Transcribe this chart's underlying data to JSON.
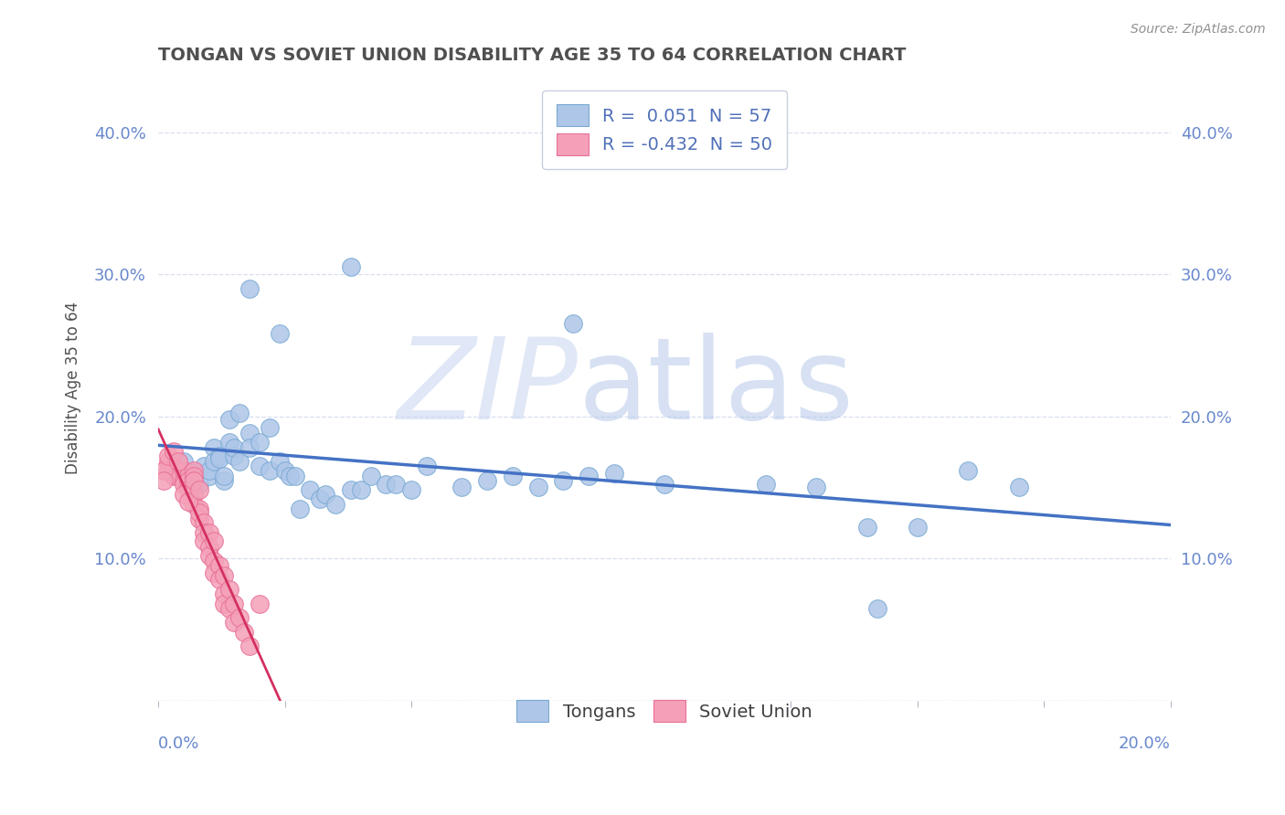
{
  "title": "TONGAN VS SOVIET UNION DISABILITY AGE 35 TO 64 CORRELATION CHART",
  "source_text": "Source: ZipAtlas.com",
  "ylabel": "Disability Age 35 to 64",
  "ytick_values": [
    0.0,
    0.1,
    0.2,
    0.3,
    0.4
  ],
  "ytick_labels": [
    "",
    "10.0%",
    "20.0%",
    "30.0%",
    "40.0%"
  ],
  "xlim": [
    0.0,
    0.2
  ],
  "ylim": [
    0.0,
    0.44
  ],
  "watermark_zip": "ZIP",
  "watermark_atlas": "atlas",
  "tongan_color": "#aec6e8",
  "soviet_color": "#f4a0b8",
  "tongan_edge_color": "#7aaad4",
  "soviet_edge_color": "#e87098",
  "tongan_line_color": "#4472c4",
  "soviet_line_color": "#d43060",
  "title_color": "#505050",
  "axis_label_color": "#6888cc",
  "grid_color": "#d8dff0",
  "legend_text_color": "#5070b8",
  "tongan_scatter": [
    [
      0.005,
      0.168
    ],
    [
      0.007,
      0.16
    ],
    [
      0.008,
      0.152
    ],
    [
      0.009,
      0.165
    ],
    [
      0.01,
      0.158
    ],
    [
      0.01,
      0.162
    ],
    [
      0.011,
      0.178
    ],
    [
      0.011,
      0.168
    ],
    [
      0.012,
      0.172
    ],
    [
      0.012,
      0.17
    ],
    [
      0.013,
      0.155
    ],
    [
      0.013,
      0.158
    ],
    [
      0.014,
      0.198
    ],
    [
      0.014,
      0.182
    ],
    [
      0.015,
      0.172
    ],
    [
      0.015,
      0.178
    ],
    [
      0.016,
      0.168
    ],
    [
      0.016,
      0.202
    ],
    [
      0.018,
      0.188
    ],
    [
      0.018,
      0.178
    ],
    [
      0.02,
      0.165
    ],
    [
      0.02,
      0.182
    ],
    [
      0.022,
      0.192
    ],
    [
      0.022,
      0.162
    ],
    [
      0.024,
      0.168
    ],
    [
      0.025,
      0.162
    ],
    [
      0.026,
      0.158
    ],
    [
      0.027,
      0.158
    ],
    [
      0.028,
      0.135
    ],
    [
      0.03,
      0.148
    ],
    [
      0.032,
      0.142
    ],
    [
      0.033,
      0.145
    ],
    [
      0.035,
      0.138
    ],
    [
      0.038,
      0.148
    ],
    [
      0.04,
      0.148
    ],
    [
      0.042,
      0.158
    ],
    [
      0.045,
      0.152
    ],
    [
      0.047,
      0.152
    ],
    [
      0.05,
      0.148
    ],
    [
      0.053,
      0.165
    ],
    [
      0.06,
      0.15
    ],
    [
      0.065,
      0.155
    ],
    [
      0.07,
      0.158
    ],
    [
      0.075,
      0.15
    ],
    [
      0.08,
      0.155
    ],
    [
      0.085,
      0.158
    ],
    [
      0.09,
      0.16
    ],
    [
      0.1,
      0.152
    ],
    [
      0.12,
      0.152
    ],
    [
      0.13,
      0.15
    ],
    [
      0.14,
      0.122
    ],
    [
      0.15,
      0.122
    ],
    [
      0.16,
      0.162
    ],
    [
      0.17,
      0.15
    ],
    [
      0.018,
      0.29
    ],
    [
      0.038,
      0.305
    ],
    [
      0.024,
      0.258
    ],
    [
      0.082,
      0.265
    ],
    [
      0.142,
      0.065
    ]
  ],
  "soviet_scatter": [
    [
      0.002,
      0.168
    ],
    [
      0.002,
      0.162
    ],
    [
      0.003,
      0.158
    ],
    [
      0.003,
      0.165
    ],
    [
      0.004,
      0.162
    ],
    [
      0.004,
      0.158
    ],
    [
      0.005,
      0.155
    ],
    [
      0.005,
      0.162
    ],
    [
      0.005,
      0.152
    ],
    [
      0.006,
      0.158
    ],
    [
      0.006,
      0.155
    ],
    [
      0.006,
      0.148
    ],
    [
      0.007,
      0.162
    ],
    [
      0.007,
      0.158
    ],
    [
      0.007,
      0.145
    ],
    [
      0.007,
      0.138
    ],
    [
      0.008,
      0.135
    ],
    [
      0.008,
      0.128
    ],
    [
      0.008,
      0.132
    ],
    [
      0.009,
      0.125
    ],
    [
      0.009,
      0.118
    ],
    [
      0.009,
      0.112
    ],
    [
      0.01,
      0.118
    ],
    [
      0.01,
      0.108
    ],
    [
      0.01,
      0.102
    ],
    [
      0.011,
      0.112
    ],
    [
      0.011,
      0.098
    ],
    [
      0.011,
      0.09
    ],
    [
      0.012,
      0.095
    ],
    [
      0.012,
      0.085
    ],
    [
      0.013,
      0.088
    ],
    [
      0.013,
      0.075
    ],
    [
      0.013,
      0.068
    ],
    [
      0.014,
      0.078
    ],
    [
      0.014,
      0.065
    ],
    [
      0.015,
      0.068
    ],
    [
      0.015,
      0.055
    ],
    [
      0.016,
      0.058
    ],
    [
      0.017,
      0.048
    ],
    [
      0.018,
      0.038
    ],
    [
      0.001,
      0.162
    ],
    [
      0.001,
      0.155
    ],
    [
      0.002,
      0.172
    ],
    [
      0.003,
      0.175
    ],
    [
      0.004,
      0.168
    ],
    [
      0.005,
      0.145
    ],
    [
      0.006,
      0.14
    ],
    [
      0.007,
      0.155
    ],
    [
      0.008,
      0.148
    ],
    [
      0.02,
      0.068
    ]
  ]
}
